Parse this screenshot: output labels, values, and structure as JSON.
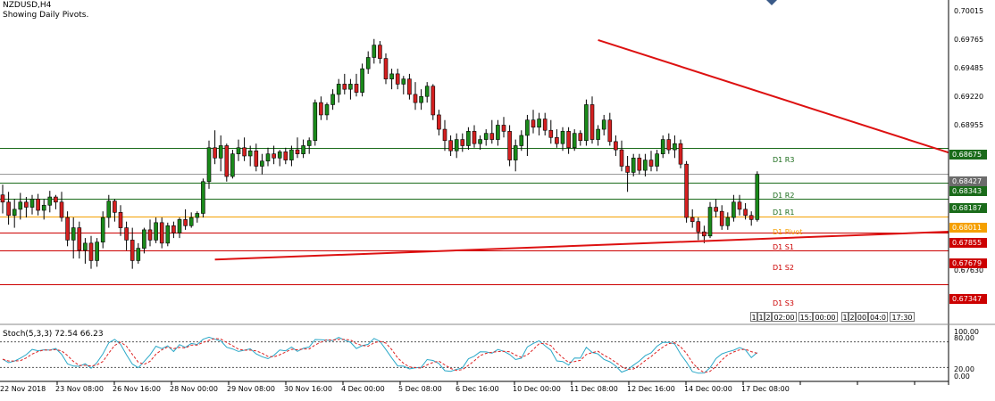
{
  "header": {
    "symbol": "NZDUSD,H4",
    "subtitle": "Showing Daily Pivots."
  },
  "indicator": {
    "label": "Stoch(5,3,3) 72.54 66.23",
    "levels": [
      80,
      20
    ],
    "axis_ticks": [
      "100.00",
      "80.00",
      "20.00",
      "0.00"
    ]
  },
  "price_axis": {
    "ticks": [
      "0.70015",
      "0.69765",
      "0.69485",
      "0.69220",
      "0.68955",
      "0.67630"
    ]
  },
  "pivots": [
    {
      "name": "D1 R3",
      "value": 0.68675,
      "tag": "0.68675",
      "color": "#1a6b1a"
    },
    {
      "name": "D1 R2",
      "value": 0.68343,
      "tag": "0.68343",
      "color": "#1a6b1a"
    },
    {
      "name": "D1 R1",
      "value": 0.68187,
      "tag": "0.68187",
      "color": "#1a6b1a"
    },
    {
      "name": "D1 Pivot",
      "value": 0.68011,
      "tag": "0.68011",
      "color": "#f5a000"
    },
    {
      "name": "D1 S1",
      "value": 0.67855,
      "tag": "0.67855",
      "color": "#cc0000"
    },
    {
      "name": "D1 S2",
      "value": 0.67679,
      "tag": "0.67679",
      "color": "#cc0000"
    },
    {
      "name": "D1 S3",
      "value": 0.67347,
      "tag": "0.67347",
      "color": "#cc0000"
    }
  ],
  "current_price": {
    "value": 0.68427,
    "tag": "0.68427"
  },
  "x_labels": [
    "22 Nov 2018",
    "23 Nov 08:00",
    "26 Nov 16:00",
    "28 Nov 00:00",
    "29 Nov 08:00",
    "30 Nov 16:00",
    "4 Dec 00:00",
    "5 Dec 08:00",
    "6 Dec 16:00",
    "10 Dec 00:00",
    "11 Dec 08:00",
    "12 Dec 16:00",
    "14 Dec 00:00",
    "17 Dec 08:00"
  ],
  "separator_labels": [
    "1",
    "1",
    "2",
    "02:00",
    "15:",
    "00:00",
    "1",
    "2",
    "00",
    "04:0",
    "17:30"
  ],
  "colors": {
    "bull": "#1a8a1a",
    "bear": "#d42020",
    "trend": "#dd1111",
    "stoch_main": "#2aa8c8",
    "stoch_signal": "#dd2222"
  },
  "chart_data": {
    "type": "candlestick",
    "title": "NZDUSD,H4",
    "ylim": [
      0.6708,
      0.7012
    ],
    "trendlines": [
      {
        "from": {
          "bar": 101,
          "price": 0.6973
        },
        "to": {
          "bar": 185,
          "price": 0.6818
        }
      },
      {
        "from": {
          "bar": 36,
          "price": 0.6759
        },
        "to": {
          "bar": 185,
          "price": 0.67915
        }
      }
    ],
    "candles": [
      {
        "o": 0.6822,
        "h": 0.6832,
        "l": 0.6804,
        "c": 0.6815
      },
      {
        "o": 0.6815,
        "h": 0.6825,
        "l": 0.6793,
        "c": 0.6802
      },
      {
        "o": 0.6802,
        "h": 0.6818,
        "l": 0.679,
        "c": 0.6808
      },
      {
        "o": 0.6808,
        "h": 0.6824,
        "l": 0.6798,
        "c": 0.6815
      },
      {
        "o": 0.6815,
        "h": 0.682,
        "l": 0.68,
        "c": 0.681
      },
      {
        "o": 0.681,
        "h": 0.6822,
        "l": 0.6803,
        "c": 0.6818
      },
      {
        "o": 0.6818,
        "h": 0.6823,
        "l": 0.6802,
        "c": 0.6807
      },
      {
        "o": 0.6807,
        "h": 0.6818,
        "l": 0.6798,
        "c": 0.6812
      },
      {
        "o": 0.6812,
        "h": 0.6826,
        "l": 0.6805,
        "c": 0.682
      },
      {
        "o": 0.682,
        "h": 0.6822,
        "l": 0.6808,
        "c": 0.6815
      },
      {
        "o": 0.6815,
        "h": 0.6825,
        "l": 0.6796,
        "c": 0.68
      },
      {
        "o": 0.68,
        "h": 0.6806,
        "l": 0.6772,
        "c": 0.6778
      },
      {
        "o": 0.6778,
        "h": 0.68,
        "l": 0.676,
        "c": 0.679
      },
      {
        "o": 0.679,
        "h": 0.6796,
        "l": 0.676,
        "c": 0.6768
      },
      {
        "o": 0.6768,
        "h": 0.678,
        "l": 0.6755,
        "c": 0.6775
      },
      {
        "o": 0.6775,
        "h": 0.6782,
        "l": 0.675,
        "c": 0.6758
      },
      {
        "o": 0.6758,
        "h": 0.678,
        "l": 0.6752,
        "c": 0.6776
      },
      {
        "o": 0.6776,
        "h": 0.6806,
        "l": 0.677,
        "c": 0.68
      },
      {
        "o": 0.68,
        "h": 0.6822,
        "l": 0.679,
        "c": 0.6816
      },
      {
        "o": 0.6816,
        "h": 0.6818,
        "l": 0.6796,
        "c": 0.6805
      },
      {
        "o": 0.6805,
        "h": 0.6812,
        "l": 0.6782,
        "c": 0.679
      },
      {
        "o": 0.679,
        "h": 0.6796,
        "l": 0.6768,
        "c": 0.6778
      },
      {
        "o": 0.6778,
        "h": 0.679,
        "l": 0.675,
        "c": 0.6758
      },
      {
        "o": 0.6758,
        "h": 0.6775,
        "l": 0.6755,
        "c": 0.677
      },
      {
        "o": 0.677,
        "h": 0.679,
        "l": 0.6765,
        "c": 0.6788
      },
      {
        "o": 0.6788,
        "h": 0.6798,
        "l": 0.6772,
        "c": 0.6778
      },
      {
        "o": 0.6778,
        "h": 0.68,
        "l": 0.6775,
        "c": 0.6795
      },
      {
        "o": 0.6795,
        "h": 0.68,
        "l": 0.677,
        "c": 0.6775
      },
      {
        "o": 0.6775,
        "h": 0.6795,
        "l": 0.6772,
        "c": 0.6792
      },
      {
        "o": 0.6792,
        "h": 0.6796,
        "l": 0.678,
        "c": 0.6785
      },
      {
        "o": 0.6785,
        "h": 0.68,
        "l": 0.678,
        "c": 0.6798
      },
      {
        "o": 0.6798,
        "h": 0.6808,
        "l": 0.6788,
        "c": 0.6792
      },
      {
        "o": 0.6792,
        "h": 0.6805,
        "l": 0.679,
        "c": 0.68
      },
      {
        "o": 0.68,
        "h": 0.6806,
        "l": 0.6795,
        "c": 0.6804
      },
      {
        "o": 0.6804,
        "h": 0.6838,
        "l": 0.68,
        "c": 0.6835
      },
      {
        "o": 0.6835,
        "h": 0.6875,
        "l": 0.6828,
        "c": 0.6868
      },
      {
        "o": 0.6868,
        "h": 0.6885,
        "l": 0.6852,
        "c": 0.6858
      },
      {
        "o": 0.6858,
        "h": 0.688,
        "l": 0.6845,
        "c": 0.687
      },
      {
        "o": 0.687,
        "h": 0.6872,
        "l": 0.6835,
        "c": 0.684
      },
      {
        "o": 0.684,
        "h": 0.6866,
        "l": 0.6838,
        "c": 0.6862
      },
      {
        "o": 0.6862,
        "h": 0.6876,
        "l": 0.6855,
        "c": 0.6868
      },
      {
        "o": 0.6868,
        "h": 0.6878,
        "l": 0.6855,
        "c": 0.686
      },
      {
        "o": 0.686,
        "h": 0.687,
        "l": 0.685,
        "c": 0.6865
      },
      {
        "o": 0.6865,
        "h": 0.6872,
        "l": 0.6845,
        "c": 0.685
      },
      {
        "o": 0.685,
        "h": 0.6862,
        "l": 0.6842,
        "c": 0.6855
      },
      {
        "o": 0.6855,
        "h": 0.6868,
        "l": 0.685,
        "c": 0.6862
      },
      {
        "o": 0.6862,
        "h": 0.687,
        "l": 0.6852,
        "c": 0.6858
      },
      {
        "o": 0.6858,
        "h": 0.6866,
        "l": 0.685,
        "c": 0.6864
      },
      {
        "o": 0.6864,
        "h": 0.6868,
        "l": 0.6852,
        "c": 0.6856
      },
      {
        "o": 0.6856,
        "h": 0.687,
        "l": 0.685,
        "c": 0.6866
      },
      {
        "o": 0.6866,
        "h": 0.6878,
        "l": 0.6858,
        "c": 0.6862
      },
      {
        "o": 0.6862,
        "h": 0.6876,
        "l": 0.6858,
        "c": 0.687
      },
      {
        "o": 0.687,
        "h": 0.6878,
        "l": 0.6862,
        "c": 0.6875
      },
      {
        "o": 0.6875,
        "h": 0.6915,
        "l": 0.687,
        "c": 0.6912
      },
      {
        "o": 0.6912,
        "h": 0.6918,
        "l": 0.6895,
        "c": 0.69
      },
      {
        "o": 0.69,
        "h": 0.6912,
        "l": 0.6895,
        "c": 0.691
      },
      {
        "o": 0.691,
        "h": 0.6925,
        "l": 0.6905,
        "c": 0.692
      },
      {
        "o": 0.692,
        "h": 0.6935,
        "l": 0.6912,
        "c": 0.693
      },
      {
        "o": 0.693,
        "h": 0.694,
        "l": 0.692,
        "c": 0.6925
      },
      {
        "o": 0.6925,
        "h": 0.6935,
        "l": 0.6915,
        "c": 0.693
      },
      {
        "o": 0.693,
        "h": 0.694,
        "l": 0.6918,
        "c": 0.6922
      },
      {
        "o": 0.6922,
        "h": 0.695,
        "l": 0.6918,
        "c": 0.6945
      },
      {
        "o": 0.6945,
        "h": 0.6962,
        "l": 0.694,
        "c": 0.6956
      },
      {
        "o": 0.6956,
        "h": 0.6974,
        "l": 0.695,
        "c": 0.6968
      },
      {
        "o": 0.6968,
        "h": 0.6972,
        "l": 0.695,
        "c": 0.6955
      },
      {
        "o": 0.6955,
        "h": 0.696,
        "l": 0.693,
        "c": 0.6935
      },
      {
        "o": 0.6935,
        "h": 0.6945,
        "l": 0.6925,
        "c": 0.694
      },
      {
        "o": 0.694,
        "h": 0.6945,
        "l": 0.6925,
        "c": 0.693
      },
      {
        "o": 0.693,
        "h": 0.6938,
        "l": 0.692,
        "c": 0.6935
      },
      {
        "o": 0.6935,
        "h": 0.694,
        "l": 0.6915,
        "c": 0.692
      },
      {
        "o": 0.692,
        "h": 0.6932,
        "l": 0.6905,
        "c": 0.6912
      },
      {
        "o": 0.6912,
        "h": 0.6925,
        "l": 0.6905,
        "c": 0.6918
      },
      {
        "o": 0.6918,
        "h": 0.6932,
        "l": 0.6912,
        "c": 0.6928
      },
      {
        "o": 0.6928,
        "h": 0.693,
        "l": 0.6895,
        "c": 0.69
      },
      {
        "o": 0.69,
        "h": 0.6905,
        "l": 0.688,
        "c": 0.6886
      },
      {
        "o": 0.6886,
        "h": 0.6895,
        "l": 0.6865,
        "c": 0.6875
      },
      {
        "o": 0.6875,
        "h": 0.688,
        "l": 0.686,
        "c": 0.6865
      },
      {
        "o": 0.6865,
        "h": 0.6882,
        "l": 0.6858,
        "c": 0.6876
      },
      {
        "o": 0.6876,
        "h": 0.6882,
        "l": 0.6864,
        "c": 0.687
      },
      {
        "o": 0.687,
        "h": 0.6888,
        "l": 0.6866,
        "c": 0.6884
      },
      {
        "o": 0.6884,
        "h": 0.689,
        "l": 0.6868,
        "c": 0.6872
      },
      {
        "o": 0.6872,
        "h": 0.688,
        "l": 0.6866,
        "c": 0.6876
      },
      {
        "o": 0.6876,
        "h": 0.6886,
        "l": 0.687,
        "c": 0.6882
      },
      {
        "o": 0.6882,
        "h": 0.6895,
        "l": 0.6872,
        "c": 0.6876
      },
      {
        "o": 0.6876,
        "h": 0.6895,
        "l": 0.687,
        "c": 0.689
      },
      {
        "o": 0.689,
        "h": 0.6898,
        "l": 0.6878,
        "c": 0.6884
      },
      {
        "o": 0.6884,
        "h": 0.689,
        "l": 0.685,
        "c": 0.6856
      },
      {
        "o": 0.6856,
        "h": 0.6876,
        "l": 0.6845,
        "c": 0.687
      },
      {
        "o": 0.687,
        "h": 0.6885,
        "l": 0.6865,
        "c": 0.688
      },
      {
        "o": 0.688,
        "h": 0.69,
        "l": 0.686,
        "c": 0.6895
      },
      {
        "o": 0.6895,
        "h": 0.6905,
        "l": 0.6882,
        "c": 0.6888
      },
      {
        "o": 0.6888,
        "h": 0.6902,
        "l": 0.688,
        "c": 0.6896
      },
      {
        "o": 0.6896,
        "h": 0.6902,
        "l": 0.688,
        "c": 0.6885
      },
      {
        "o": 0.6885,
        "h": 0.6895,
        "l": 0.6872,
        "c": 0.6878
      },
      {
        "o": 0.6878,
        "h": 0.6886,
        "l": 0.6868,
        "c": 0.6872
      },
      {
        "o": 0.6872,
        "h": 0.6888,
        "l": 0.6865,
        "c": 0.6884
      },
      {
        "o": 0.6884,
        "h": 0.6888,
        "l": 0.6862,
        "c": 0.6868
      },
      {
        "o": 0.6868,
        "h": 0.6886,
        "l": 0.6865,
        "c": 0.6882
      },
      {
        "o": 0.6882,
        "h": 0.6885,
        "l": 0.687,
        "c": 0.6875
      },
      {
        "o": 0.6875,
        "h": 0.6915,
        "l": 0.687,
        "c": 0.691
      },
      {
        "o": 0.691,
        "h": 0.6918,
        "l": 0.6872,
        "c": 0.6876
      },
      {
        "o": 0.6876,
        "h": 0.689,
        "l": 0.687,
        "c": 0.6886
      },
      {
        "o": 0.6886,
        "h": 0.69,
        "l": 0.688,
        "c": 0.6895
      },
      {
        "o": 0.6895,
        "h": 0.6902,
        "l": 0.687,
        "c": 0.6874
      },
      {
        "o": 0.6874,
        "h": 0.688,
        "l": 0.686,
        "c": 0.6866
      },
      {
        "o": 0.6866,
        "h": 0.6875,
        "l": 0.6845,
        "c": 0.685
      },
      {
        "o": 0.685,
        "h": 0.686,
        "l": 0.6825,
        "c": 0.6844
      },
      {
        "o": 0.6844,
        "h": 0.6862,
        "l": 0.684,
        "c": 0.6858
      },
      {
        "o": 0.6858,
        "h": 0.6862,
        "l": 0.6842,
        "c": 0.6846
      },
      {
        "o": 0.6846,
        "h": 0.6862,
        "l": 0.684,
        "c": 0.6856
      },
      {
        "o": 0.6856,
        "h": 0.6865,
        "l": 0.6845,
        "c": 0.685
      },
      {
        "o": 0.685,
        "h": 0.6866,
        "l": 0.6845,
        "c": 0.6862
      },
      {
        "o": 0.6862,
        "h": 0.688,
        "l": 0.6858,
        "c": 0.6876
      },
      {
        "o": 0.6876,
        "h": 0.6882,
        "l": 0.6862,
        "c": 0.6866
      },
      {
        "o": 0.6866,
        "h": 0.688,
        "l": 0.6858,
        "c": 0.6872
      },
      {
        "o": 0.6872,
        "h": 0.6876,
        "l": 0.6848,
        "c": 0.6852
      },
      {
        "o": 0.6852,
        "h": 0.6855,
        "l": 0.6795,
        "c": 0.68
      },
      {
        "o": 0.68,
        "h": 0.6808,
        "l": 0.679,
        "c": 0.6796
      },
      {
        "o": 0.6796,
        "h": 0.68,
        "l": 0.6778,
        "c": 0.6786
      },
      {
        "o": 0.6786,
        "h": 0.6792,
        "l": 0.6775,
        "c": 0.6782
      },
      {
        "o": 0.6782,
        "h": 0.6815,
        "l": 0.678,
        "c": 0.681
      },
      {
        "o": 0.681,
        "h": 0.6818,
        "l": 0.68,
        "c": 0.6806
      },
      {
        "o": 0.6806,
        "h": 0.6812,
        "l": 0.6788,
        "c": 0.6792
      },
      {
        "o": 0.6792,
        "h": 0.6805,
        "l": 0.6788,
        "c": 0.68
      },
      {
        "o": 0.68,
        "h": 0.6822,
        "l": 0.6796,
        "c": 0.6815
      },
      {
        "o": 0.6815,
        "h": 0.6822,
        "l": 0.6802,
        "c": 0.6808
      },
      {
        "o": 0.6808,
        "h": 0.6814,
        "l": 0.6798,
        "c": 0.6802
      },
      {
        "o": 0.6802,
        "h": 0.6806,
        "l": 0.6792,
        "c": 0.6798
      },
      {
        "o": 0.6798,
        "h": 0.6845,
        "l": 0.6796,
        "c": 0.6842
      }
    ]
  }
}
